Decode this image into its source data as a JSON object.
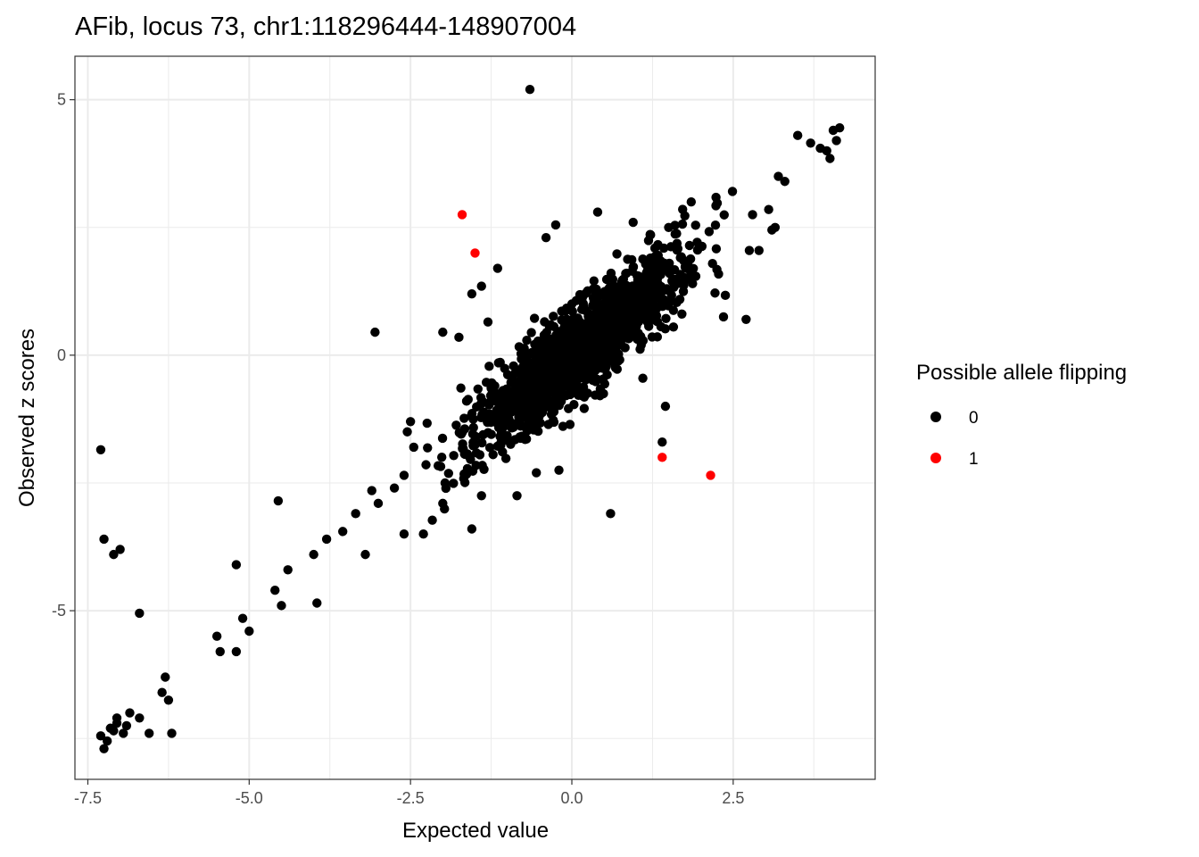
{
  "chart_data": {
    "type": "scatter",
    "title": "AFib, locus 73, chr1:118296444-148907004",
    "xlabel": "Expected value",
    "ylabel": "Observed z scores",
    "xlim": [
      -7.7,
      4.7
    ],
    "ylim": [
      -8.3,
      5.85
    ],
    "x_ticks": [
      -7.5,
      -5.0,
      -2.5,
      0.0,
      2.5
    ],
    "x_tick_labels": [
      "-7.5",
      "-5.0",
      "-2.5",
      "0.0",
      "2.5"
    ],
    "y_ticks": [
      5,
      0,
      -5
    ],
    "y_tick_labels": [
      "5",
      "0",
      "-5"
    ],
    "grid": true,
    "legend": {
      "title": "Possible allele flipping",
      "placement": "right",
      "entries": [
        {
          "label": "0",
          "color": "#000000"
        },
        {
          "label": "1",
          "color": "#ff0000"
        }
      ]
    },
    "series": [
      {
        "name": "0",
        "color": "#000000",
        "points": [
          [
            -0.65,
            5.2
          ],
          [
            -3.05,
            0.45
          ],
          [
            -7.3,
            -1.85
          ],
          [
            -7.25,
            -3.6
          ],
          [
            -7.1,
            -3.9
          ],
          [
            -7.0,
            -3.8
          ],
          [
            -6.7,
            -5.05
          ],
          [
            -4.55,
            -2.85
          ],
          [
            -5.2,
            -4.1
          ],
          [
            -3.95,
            -4.85
          ],
          [
            -3.0,
            -2.9
          ],
          [
            -3.2,
            -3.9
          ],
          [
            -5.1,
            -5.15
          ],
          [
            -5.0,
            -5.4
          ],
          [
            -5.5,
            -5.5
          ],
          [
            -5.45,
            -5.8
          ],
          [
            -5.2,
            -5.8
          ],
          [
            -4.5,
            -4.9
          ],
          [
            -4.4,
            -4.2
          ],
          [
            -4.6,
            -4.6
          ],
          [
            -4.0,
            -3.9
          ],
          [
            -3.8,
            -3.6
          ],
          [
            -3.55,
            -3.45
          ],
          [
            -3.35,
            -3.1
          ],
          [
            -2.6,
            -3.5
          ],
          [
            -2.3,
            -3.5
          ],
          [
            -2.0,
            -2.9
          ],
          [
            -1.55,
            -3.4
          ],
          [
            -1.4,
            -2.75
          ],
          [
            -0.85,
            -2.75
          ],
          [
            -0.55,
            -2.3
          ],
          [
            -0.2,
            -2.25
          ],
          [
            0.6,
            -3.1
          ],
          [
            1.4,
            -1.7
          ],
          [
            1.45,
            -1.0
          ],
          [
            1.1,
            -0.45
          ],
          [
            2.35,
            0.75
          ],
          [
            2.7,
            0.7
          ],
          [
            2.8,
            2.75
          ],
          [
            3.05,
            2.85
          ],
          [
            3.2,
            3.5
          ],
          [
            3.3,
            3.4
          ],
          [
            3.5,
            4.3
          ],
          [
            3.7,
            4.15
          ],
          [
            3.95,
            4.0
          ],
          [
            4.05,
            4.4
          ],
          [
            4.1,
            4.2
          ],
          [
            4.15,
            4.45
          ],
          [
            4.0,
            3.85
          ],
          [
            3.85,
            4.05
          ],
          [
            3.15,
            2.5
          ],
          [
            3.1,
            2.45
          ],
          [
            2.9,
            2.05
          ],
          [
            2.75,
            2.05
          ],
          [
            1.85,
            3.0
          ],
          [
            1.5,
            2.5
          ],
          [
            0.95,
            2.6
          ],
          [
            0.4,
            2.8
          ],
          [
            -0.25,
            2.55
          ],
          [
            -0.4,
            2.3
          ],
          [
            -1.15,
            1.7
          ],
          [
            -1.4,
            1.35
          ],
          [
            -1.55,
            1.2
          ],
          [
            -1.3,
            0.65
          ],
          [
            -2.0,
            0.45
          ],
          [
            -1.75,
            0.35
          ],
          [
            -2.5,
            -1.3
          ],
          [
            -2.55,
            -1.5
          ],
          [
            -2.45,
            -1.8
          ],
          [
            -2.6,
            -2.35
          ],
          [
            -2.75,
            -2.6
          ],
          [
            -3.1,
            -2.65
          ],
          [
            -6.3,
            -6.3
          ],
          [
            -6.35,
            -6.6
          ],
          [
            -6.25,
            -6.75
          ],
          [
            -6.2,
            -7.4
          ],
          [
            -6.55,
            -7.4
          ],
          [
            -6.7,
            -7.1
          ],
          [
            -6.85,
            -7.0
          ],
          [
            -7.05,
            -7.2
          ],
          [
            -7.15,
            -7.3
          ],
          [
            -7.2,
            -7.55
          ],
          [
            -7.3,
            -7.45
          ],
          [
            -7.25,
            -7.7
          ],
          [
            -7.1,
            -7.35
          ],
          [
            -6.95,
            -7.4
          ],
          [
            -7.05,
            -7.1
          ],
          [
            -6.9,
            -7.25
          ]
        ],
        "cloud": {
          "count": 1450,
          "x_range": [
            -2.3,
            2.5
          ],
          "slope": 1.0,
          "intercept": 0.0,
          "residual_sd": 0.45,
          "seed": 73
        }
      },
      {
        "name": "1",
        "color": "#ff0000",
        "points": [
          [
            -1.7,
            2.75
          ],
          [
            -1.5,
            2.0
          ],
          [
            1.4,
            -2.0
          ],
          [
            2.15,
            -2.35
          ]
        ]
      }
    ]
  }
}
